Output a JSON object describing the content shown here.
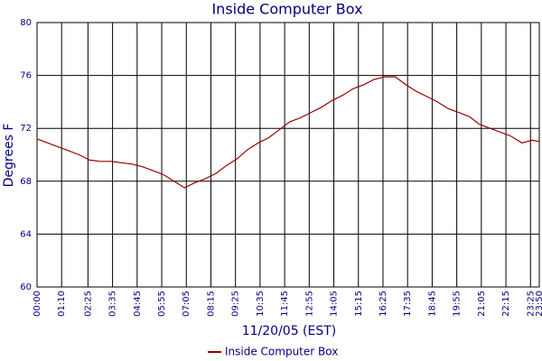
{
  "chart_data": {
    "type": "line",
    "title": "Inside Computer Box",
    "x_label": "11/20/05 (EST)",
    "y_label": "Degrees F",
    "x": [
      0,
      30,
      60,
      90,
      120,
      150,
      180,
      210,
      240,
      270,
      300,
      330,
      360,
      390,
      420,
      450,
      480,
      510,
      540,
      570,
      600,
      630,
      660,
      690,
      720,
      750,
      780,
      810,
      840,
      870,
      900,
      930,
      960,
      990,
      1020,
      1050,
      1080,
      1110,
      1140,
      1170,
      1200,
      1230,
      1260,
      1290,
      1320,
      1350,
      1380,
      1410,
      1430
    ],
    "series": [
      {
        "name": "Inside Computer Box",
        "color": "#990000",
        "values": [
          71.2,
          70.9,
          70.6,
          70.3,
          70.0,
          69.6,
          69.5,
          69.5,
          69.4,
          69.3,
          69.1,
          68.8,
          68.5,
          68.0,
          67.5,
          67.9,
          68.2,
          68.6,
          69.2,
          69.7,
          70.4,
          70.9,
          71.3,
          71.9,
          72.5,
          72.8,
          73.2,
          73.6,
          74.1,
          74.5,
          75.0,
          75.3,
          75.7,
          75.9,
          75.9,
          75.3,
          74.8,
          74.4,
          74.0,
          73.5,
          73.2,
          72.9,
          72.3,
          72.0,
          71.7,
          71.4,
          70.9,
          71.1,
          71.0
        ]
      }
    ],
    "xlim": [
      0,
      1430
    ],
    "xticks": [
      {
        "value": 0,
        "label": "00:00"
      },
      {
        "value": 70,
        "label": "01:10"
      },
      {
        "value": 145,
        "label": "02:25"
      },
      {
        "value": 215,
        "label": "03:35"
      },
      {
        "value": 285,
        "label": "04:45"
      },
      {
        "value": 355,
        "label": "05:55"
      },
      {
        "value": 425,
        "label": "07:05"
      },
      {
        "value": 495,
        "label": "08:15"
      },
      {
        "value": 565,
        "label": "09:25"
      },
      {
        "value": 635,
        "label": "10:35"
      },
      {
        "value": 705,
        "label": "11:45"
      },
      {
        "value": 775,
        "label": "12:55"
      },
      {
        "value": 845,
        "label": "14:05"
      },
      {
        "value": 915,
        "label": "15:15"
      },
      {
        "value": 985,
        "label": "16:25"
      },
      {
        "value": 1055,
        "label": "17:35"
      },
      {
        "value": 1125,
        "label": "18:45"
      },
      {
        "value": 1195,
        "label": "19:55"
      },
      {
        "value": 1265,
        "label": "21:05"
      },
      {
        "value": 1335,
        "label": "22:15"
      },
      {
        "value": 1405,
        "label": "23:25"
      },
      {
        "value": 1430,
        "label": "23:50"
      }
    ],
    "ylim": [
      60,
      80
    ],
    "yticks": [
      60,
      64,
      68,
      72,
      76,
      80
    ],
    "grid": true
  }
}
